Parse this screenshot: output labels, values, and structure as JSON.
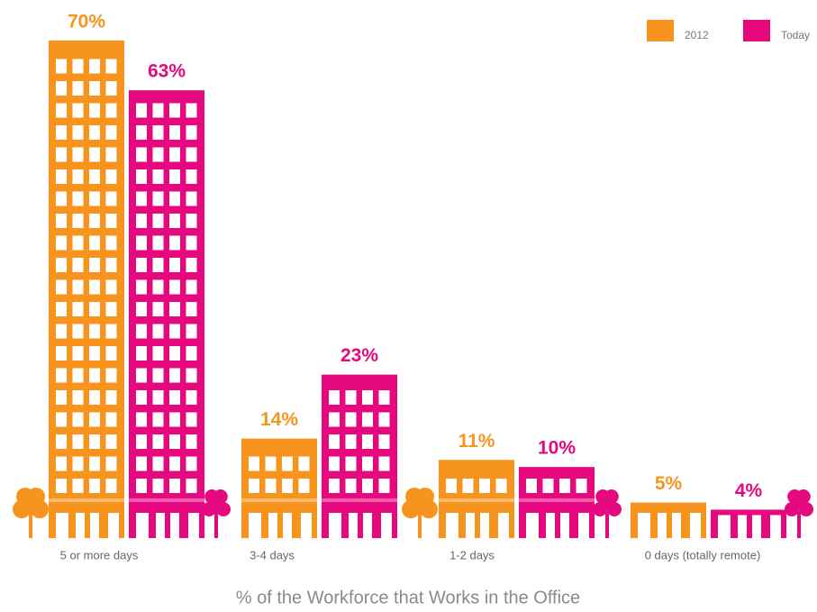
{
  "chart_data": {
    "type": "bar",
    "xlabel": "% of the Workforce that Works in the Office",
    "categories": [
      "5 or more days",
      "3-4 days",
      "1-2 days",
      "0 days (totally remote)"
    ],
    "series": [
      {
        "name": "2012",
        "color": "#f7941d",
        "values": [
          70,
          14,
          11,
          5
        ],
        "value_labels": [
          "70%",
          "14%",
          "11%",
          "5%"
        ]
      },
      {
        "name": "Today",
        "color": "#e6087f",
        "values": [
          63,
          23,
          10,
          4
        ],
        "value_labels": [
          "63%",
          "23%",
          "10%",
          "4%"
        ]
      }
    ],
    "legend": "top-right"
  }
}
